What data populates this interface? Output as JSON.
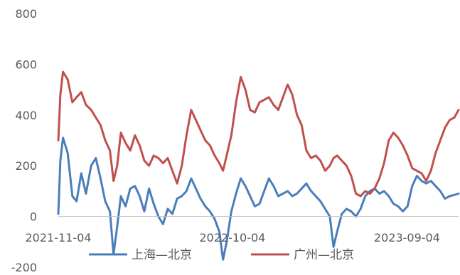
{
  "chart_data": {
    "type": "line",
    "title": "",
    "xlabel": "",
    "ylabel": "",
    "ylim": [
      -200,
      800
    ],
    "yticks": [
      -200,
      0,
      200,
      400,
      600,
      800
    ],
    "xtick_labels": [
      "2021-11-04",
      "2022-10-04",
      "2023-09-04"
    ],
    "grid": false,
    "legend_position": "bottom",
    "series": [
      {
        "name": "上海—北京",
        "color": "#4a7ebb",
        "points": [
          [
            "2021-11-04",
            10
          ],
          [
            "2021-11-08",
            220
          ],
          [
            "2021-11-13",
            310
          ],
          [
            "2021-11-22",
            250
          ],
          [
            "2021-12-01",
            80
          ],
          [
            "2021-12-09",
            60
          ],
          [
            "2021-12-18",
            170
          ],
          [
            "2021-12-27",
            90
          ],
          [
            "2022-01-06",
            200
          ],
          [
            "2022-01-15",
            230
          ],
          [
            "2022-01-24",
            150
          ],
          [
            "2022-02-02",
            60
          ],
          [
            "2022-02-11",
            20
          ],
          [
            "2022-02-18",
            -150
          ],
          [
            "2022-02-25",
            -40
          ],
          [
            "2022-03-04",
            80
          ],
          [
            "2022-03-13",
            40
          ],
          [
            "2022-03-22",
            110
          ],
          [
            "2022-03-31",
            120
          ],
          [
            "2022-04-09",
            80
          ],
          [
            "2022-04-18",
            20
          ],
          [
            "2022-04-27",
            110
          ],
          [
            "2022-05-06",
            50
          ],
          [
            "2022-05-15",
            0
          ],
          [
            "2022-05-24",
            -30
          ],
          [
            "2022-06-02",
            30
          ],
          [
            "2022-06-11",
            10
          ],
          [
            "2022-06-20",
            70
          ],
          [
            "2022-06-29",
            80
          ],
          [
            "2022-07-08",
            100
          ],
          [
            "2022-07-17",
            150
          ],
          [
            "2022-07-26",
            110
          ],
          [
            "2022-08-04",
            70
          ],
          [
            "2022-08-13",
            40
          ],
          [
            "2022-08-22",
            20
          ],
          [
            "2022-08-31",
            -10
          ],
          [
            "2022-09-09",
            -60
          ],
          [
            "2022-09-16",
            -170
          ],
          [
            "2022-09-23",
            -100
          ],
          [
            "2022-10-02",
            20
          ],
          [
            "2022-10-11",
            90
          ],
          [
            "2022-10-20",
            150
          ],
          [
            "2022-10-29",
            120
          ],
          [
            "2022-11-07",
            80
          ],
          [
            "2022-11-16",
            40
          ],
          [
            "2022-11-25",
            50
          ],
          [
            "2022-12-04",
            100
          ],
          [
            "2022-12-13",
            150
          ],
          [
            "2022-12-22",
            120
          ],
          [
            "2022-12-31",
            80
          ],
          [
            "2023-01-09",
            90
          ],
          [
            "2023-01-18",
            100
          ],
          [
            "2023-01-27",
            80
          ],
          [
            "2023-02-05",
            90
          ],
          [
            "2023-02-14",
            110
          ],
          [
            "2023-02-23",
            130
          ],
          [
            "2023-03-04",
            100
          ],
          [
            "2023-03-13",
            80
          ],
          [
            "2023-03-22",
            60
          ],
          [
            "2023-03-31",
            30
          ],
          [
            "2023-04-09",
            0
          ],
          [
            "2023-04-16",
            -120
          ],
          [
            "2023-04-23",
            -60
          ],
          [
            "2023-05-02",
            10
          ],
          [
            "2023-05-11",
            30
          ],
          [
            "2023-05-20",
            20
          ],
          [
            "2023-05-29",
            0
          ],
          [
            "2023-06-07",
            30
          ],
          [
            "2023-06-16",
            80
          ],
          [
            "2023-06-25",
            100
          ],
          [
            "2023-07-04",
            110
          ],
          [
            "2023-07-13",
            90
          ],
          [
            "2023-07-22",
            100
          ],
          [
            "2023-07-31",
            80
          ],
          [
            "2023-08-09",
            50
          ],
          [
            "2023-08-18",
            40
          ],
          [
            "2023-08-27",
            20
          ],
          [
            "2023-09-05",
            40
          ],
          [
            "2023-09-14",
            120
          ],
          [
            "2023-09-23",
            160
          ],
          [
            "2023-10-02",
            140
          ],
          [
            "2023-10-11",
            130
          ],
          [
            "2023-10-20",
            140
          ],
          [
            "2023-10-29",
            120
          ],
          [
            "2023-11-07",
            100
          ],
          [
            "2023-11-16",
            70
          ],
          [
            "2023-11-25",
            80
          ],
          [
            "2023-12-04",
            85
          ],
          [
            "2023-12-12",
            90
          ]
        ]
      },
      {
        "name": "广州—北京",
        "color": "#c0504d",
        "points": [
          [
            "2021-11-04",
            300
          ],
          [
            "2021-11-08",
            480
          ],
          [
            "2021-11-13",
            570
          ],
          [
            "2021-11-22",
            540
          ],
          [
            "2021-12-01",
            450
          ],
          [
            "2021-12-09",
            470
          ],
          [
            "2021-12-18",
            490
          ],
          [
            "2021-12-27",
            440
          ],
          [
            "2022-01-06",
            420
          ],
          [
            "2022-01-15",
            390
          ],
          [
            "2022-01-24",
            360
          ],
          [
            "2022-02-02",
            300
          ],
          [
            "2022-02-11",
            260
          ],
          [
            "2022-02-18",
            140
          ],
          [
            "2022-02-25",
            200
          ],
          [
            "2022-03-04",
            330
          ],
          [
            "2022-03-13",
            290
          ],
          [
            "2022-03-22",
            260
          ],
          [
            "2022-03-31",
            320
          ],
          [
            "2022-04-09",
            280
          ],
          [
            "2022-04-18",
            220
          ],
          [
            "2022-04-27",
            200
          ],
          [
            "2022-05-06",
            240
          ],
          [
            "2022-05-15",
            230
          ],
          [
            "2022-05-24",
            210
          ],
          [
            "2022-06-02",
            230
          ],
          [
            "2022-06-11",
            180
          ],
          [
            "2022-06-20",
            130
          ],
          [
            "2022-06-29",
            200
          ],
          [
            "2022-07-08",
            320
          ],
          [
            "2022-07-17",
            420
          ],
          [
            "2022-07-26",
            380
          ],
          [
            "2022-08-04",
            340
          ],
          [
            "2022-08-13",
            300
          ],
          [
            "2022-08-22",
            280
          ],
          [
            "2022-08-31",
            240
          ],
          [
            "2022-09-09",
            210
          ],
          [
            "2022-09-16",
            180
          ],
          [
            "2022-09-23",
            240
          ],
          [
            "2022-10-02",
            320
          ],
          [
            "2022-10-11",
            450
          ],
          [
            "2022-10-20",
            550
          ],
          [
            "2022-10-29",
            500
          ],
          [
            "2022-11-07",
            420
          ],
          [
            "2022-11-16",
            410
          ],
          [
            "2022-11-25",
            450
          ],
          [
            "2022-12-04",
            460
          ],
          [
            "2022-12-13",
            470
          ],
          [
            "2022-12-22",
            440
          ],
          [
            "2022-12-31",
            420
          ],
          [
            "2023-01-09",
            470
          ],
          [
            "2023-01-18",
            520
          ],
          [
            "2023-01-27",
            480
          ],
          [
            "2023-02-05",
            400
          ],
          [
            "2023-02-14",
            360
          ],
          [
            "2023-02-23",
            260
          ],
          [
            "2023-03-04",
            230
          ],
          [
            "2023-03-13",
            240
          ],
          [
            "2023-03-22",
            220
          ],
          [
            "2023-03-31",
            180
          ],
          [
            "2023-04-09",
            200
          ],
          [
            "2023-04-16",
            230
          ],
          [
            "2023-04-23",
            240
          ],
          [
            "2023-05-02",
            220
          ],
          [
            "2023-05-11",
            200
          ],
          [
            "2023-05-20",
            160
          ],
          [
            "2023-05-29",
            90
          ],
          [
            "2023-06-07",
            80
          ],
          [
            "2023-06-16",
            100
          ],
          [
            "2023-06-25",
            90
          ],
          [
            "2023-07-04",
            110
          ],
          [
            "2023-07-13",
            150
          ],
          [
            "2023-07-22",
            210
          ],
          [
            "2023-07-31",
            300
          ],
          [
            "2023-08-09",
            330
          ],
          [
            "2023-08-18",
            310
          ],
          [
            "2023-08-27",
            280
          ],
          [
            "2023-09-05",
            240
          ],
          [
            "2023-09-14",
            190
          ],
          [
            "2023-09-23",
            180
          ],
          [
            "2023-10-02",
            170
          ],
          [
            "2023-10-11",
            140
          ],
          [
            "2023-10-20",
            180
          ],
          [
            "2023-10-29",
            250
          ],
          [
            "2023-11-07",
            300
          ],
          [
            "2023-11-16",
            350
          ],
          [
            "2023-11-25",
            380
          ],
          [
            "2023-12-04",
            390
          ],
          [
            "2023-12-12",
            420
          ]
        ]
      }
    ]
  }
}
